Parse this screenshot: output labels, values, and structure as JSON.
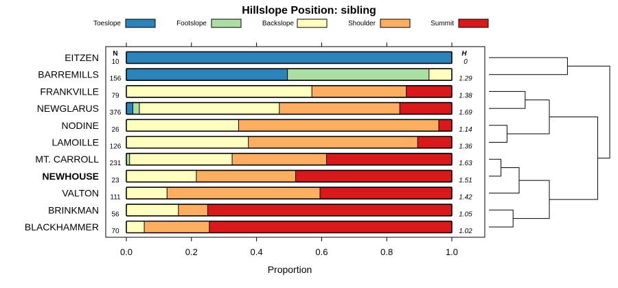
{
  "chart_data": {
    "type": "bar",
    "subtype": "stacked-horizontal-proportion",
    "title": "Hillslope Position: sibling",
    "xlabel": "Proportion",
    "xlim": [
      0,
      1
    ],
    "xticks": [
      "0.0",
      "0.2",
      "0.4",
      "0.6",
      "0.8",
      "1.0"
    ],
    "n_header": "N",
    "h_header": "H",
    "legend": {
      "placement": "top"
    },
    "series": [
      {
        "name": "Toeslope",
        "color": "#2b83ba"
      },
      {
        "name": "Footslope",
        "color": "#abdda4"
      },
      {
        "name": "Backslope",
        "color": "#ffffbf"
      },
      {
        "name": "Shoulder",
        "color": "#fdae61"
      },
      {
        "name": "Summit",
        "color": "#d7191c"
      }
    ],
    "categories": [
      {
        "name": "EITZEN",
        "n": "10",
        "h": "0",
        "bold": false,
        "values": [
          1.0,
          0.0,
          0.0,
          0.0,
          0.0
        ]
      },
      {
        "name": "BARREMILLS",
        "n": "156",
        "h": "1.29",
        "bold": false,
        "values": [
          0.495,
          0.435,
          0.07,
          0.0,
          0.0
        ]
      },
      {
        "name": "FRANKVILLE",
        "n": "79",
        "h": "1.38",
        "bold": false,
        "values": [
          0.0,
          0.0,
          0.57,
          0.29,
          0.14
        ]
      },
      {
        "name": "NEWGLARUS",
        "n": "376",
        "h": "1.69",
        "bold": false,
        "values": [
          0.02,
          0.02,
          0.43,
          0.37,
          0.16
        ]
      },
      {
        "name": "NODINE",
        "n": "26",
        "h": "1.14",
        "bold": false,
        "values": [
          0.0,
          0.0,
          0.345,
          0.615,
          0.04
        ]
      },
      {
        "name": "LAMOILLE",
        "n": "126",
        "h": "1.36",
        "bold": false,
        "values": [
          0.0,
          0.0,
          0.375,
          0.52,
          0.105
        ]
      },
      {
        "name": "MT. CARROLL",
        "n": "231",
        "h": "1.63",
        "bold": false,
        "values": [
          0.0,
          0.01,
          0.315,
          0.29,
          0.385
        ]
      },
      {
        "name": "NEWHOUSE",
        "n": "23",
        "h": "1.51",
        "bold": true,
        "values": [
          0.0,
          0.0,
          0.215,
          0.305,
          0.48
        ]
      },
      {
        "name": "VALTON",
        "n": "111",
        "h": "1.42",
        "bold": false,
        "values": [
          0.0,
          0.0,
          0.125,
          0.47,
          0.405
        ]
      },
      {
        "name": "BRINKMAN",
        "n": "56",
        "h": "1.05",
        "bold": false,
        "values": [
          0.0,
          0.0,
          0.16,
          0.09,
          0.75
        ]
      },
      {
        "name": "BLACKHAMMER",
        "n": "70",
        "h": "1.02",
        "bold": false,
        "values": [
          0.0,
          0.0,
          0.055,
          0.2,
          0.745
        ]
      }
    ],
    "dendrogram": {
      "merges": [
        {
          "a": "EITZEN",
          "b": "BARREMILLS",
          "height": 0.13
        },
        {
          "a": "FRANKVILLE",
          "b": "NEWGLARUS",
          "height": 0.06
        },
        {
          "a": "NODINE",
          "b": "LAMOILLE",
          "height": 0.03
        },
        {
          "a": 1,
          "b": 2,
          "height": 0.1
        },
        {
          "a": "MT. CARROLL",
          "b": "NEWHOUSE",
          "height": 0.02
        },
        {
          "a": 4,
          "b": "VALTON",
          "height": 0.05
        },
        {
          "a": "BRINKMAN",
          "b": "BLACKHAMMER",
          "height": 0.04
        },
        {
          "a": 5,
          "b": 6,
          "height": 0.1
        },
        {
          "a": 3,
          "b": 7,
          "height": 0.18
        },
        {
          "a": 0,
          "b": 8,
          "height": 0.2
        }
      ]
    }
  }
}
